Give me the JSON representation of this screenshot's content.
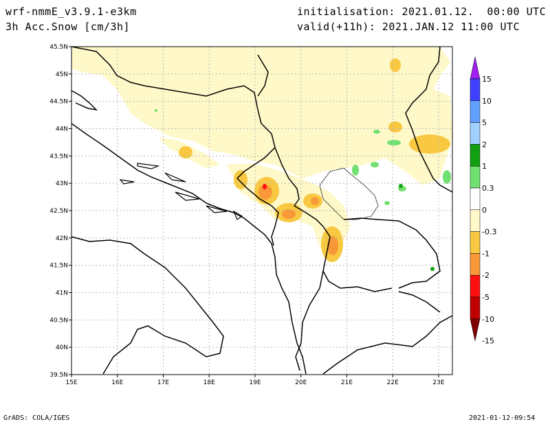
{
  "header": {
    "model": "wrf-nmmE_v3.9.1-e3km",
    "field": "3h Acc.Snow [cm/3h]",
    "init": "initialisation: 2021.01.12.  00:00 UTC",
    "valid": "valid(+11h): 2021.JAN.12 11:00 UTC"
  },
  "footer": {
    "left": "GrADS: COLA/IGES",
    "right": "2021-01-12-09:54"
  },
  "map": {
    "lon_labels": [
      "15E",
      "16E",
      "17E",
      "18E",
      "19E",
      "20E",
      "21E",
      "22E",
      "23E"
    ],
    "lat_labels": [
      "45.5N",
      "45N",
      "44.5N",
      "44N",
      "43.5N",
      "43N",
      "42.5N",
      "42N",
      "41.5N",
      "41N",
      "40.5N",
      "40N",
      "39.5N"
    ],
    "lon_range": [
      15,
      23.3
    ],
    "lat_range": [
      39.5,
      45.5
    ]
  },
  "colorbar": {
    "levels": [
      "15",
      "10",
      "5",
      "2",
      "1",
      "0.3",
      "0",
      "-0.3",
      "-1",
      "-2",
      "-5",
      "-10",
      "-15"
    ],
    "colors": [
      "#a020f0",
      "#4040ff",
      "#60a0ff",
      "#a0d0ff",
      "#10a010",
      "#70e070",
      "#ffffff",
      "#fff8c8",
      "#f8c840",
      "#f89838",
      "#ff1010",
      "#c00000",
      "#800000"
    ]
  }
}
